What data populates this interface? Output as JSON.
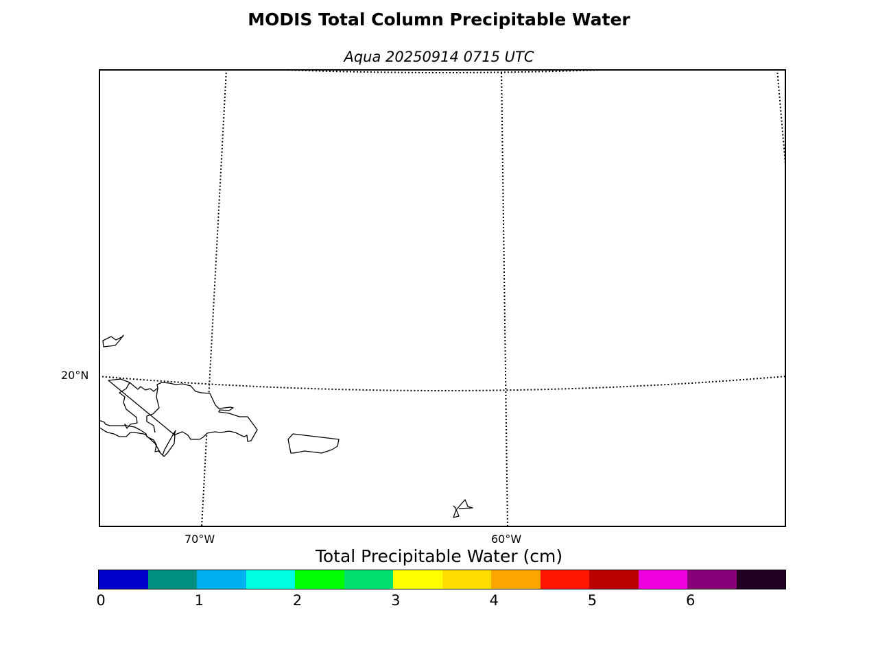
{
  "title": "MODIS Total Column Precipitable Water",
  "subtitle": "Aqua 20250914 0715 UTC",
  "map": {
    "graticule_labels": {
      "lat_20n": "20°N",
      "lon_70w": "70°W",
      "lon_60w": "60°W"
    },
    "line_color": "#000000",
    "background": "#ffffff"
  },
  "colorbar": {
    "title": "Total Precipitable Water (cm)",
    "ticks": [
      "0",
      "1",
      "2",
      "3",
      "4",
      "5",
      "6"
    ],
    "colors": [
      "#0000cc",
      "#008f80",
      "#00b0f0",
      "#00ffe0",
      "#00ff00",
      "#00e070",
      "#ffff00",
      "#ffdd00",
      "#ffa500",
      "#ff1500",
      "#bb0000",
      "#ee00dd",
      "#880077",
      "#220022"
    ]
  }
}
